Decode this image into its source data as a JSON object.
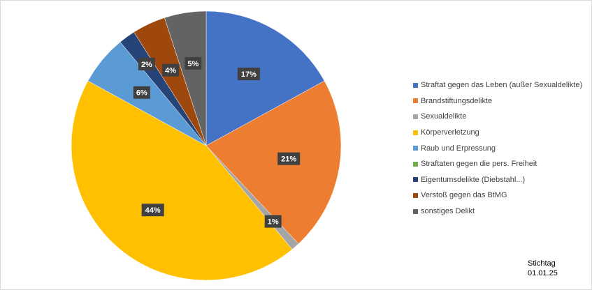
{
  "chart_data": {
    "type": "pie",
    "title": "",
    "start_angle_deg": 0,
    "direction": "clockwise",
    "legend_position": "right",
    "slices": [
      {
        "name": "Straftat gegen das Leben (außer Sexualdelikte)",
        "value": 17,
        "label": "17%",
        "color": "#4472C4"
      },
      {
        "name": " Brandstiftungsdelikte",
        "value": 21,
        "label": "21%",
        "color": "#ED7D31"
      },
      {
        "name": "Sexualdelikte",
        "value": 1,
        "label": "1%",
        "color": "#A5A5A5"
      },
      {
        "name": "Körperverletzung",
        "value": 44,
        "label": "44%",
        "color": "#FFC000"
      },
      {
        "name": "Raub und Erpressung",
        "value": 6,
        "label": "6%",
        "color": "#5B9BD5"
      },
      {
        "name": "Straftaten gegen die pers. Freiheit",
        "value": 0,
        "label": "",
        "color": "#70AD47"
      },
      {
        "name": "Eigentumsdelikte (Diebstahl...)",
        "value": 2,
        "label": "2%",
        "color": "#264478"
      },
      {
        "name": "Verstoß gegen das BtMG",
        "value": 4,
        "label": "4%",
        "color": "#9E480E"
      },
      {
        "name": "sonstiges Delikt",
        "value": 5,
        "label": "5%",
        "color": "#636363"
      }
    ]
  },
  "note": {
    "line1": "Stichtag",
    "line2": "01.01.25"
  }
}
